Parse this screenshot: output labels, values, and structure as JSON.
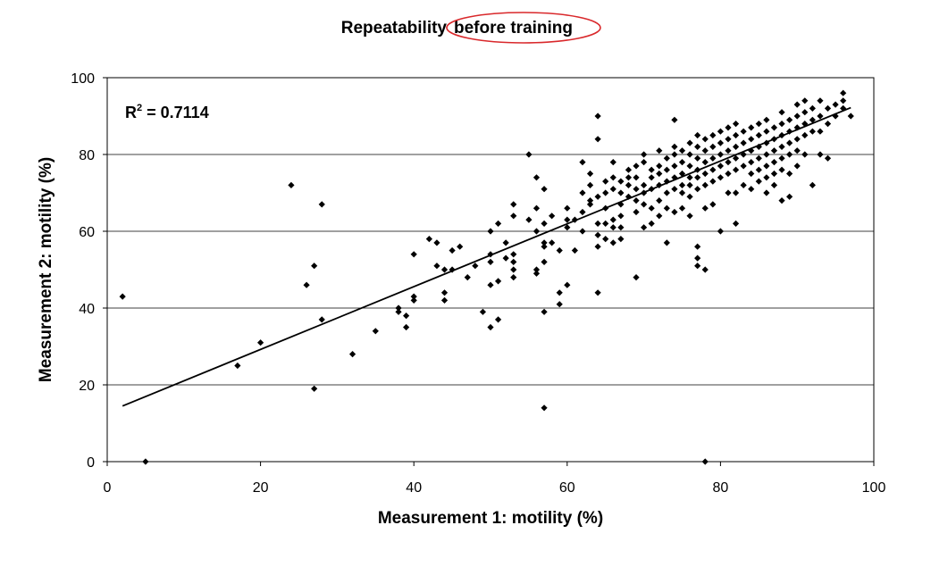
{
  "chart_data": {
    "type": "scatter",
    "title_part1": "Repeatability",
    "title_part2": "before training",
    "xlabel": "Measurement 1: motility (%)",
    "ylabel": "Measurement 2: motility (%)",
    "xlim": [
      0,
      100
    ],
    "ylim": [
      0,
      100
    ],
    "x_ticks": [
      0,
      20,
      40,
      60,
      80,
      100
    ],
    "y_ticks": [
      0,
      20,
      40,
      60,
      80,
      100
    ],
    "grid": "horizontal",
    "annotation": {
      "base": "R",
      "sup": "2",
      "rest": " = 0.7114"
    },
    "trendline": {
      "x": [
        2,
        97
      ],
      "y": [
        14.5,
        92.2
      ]
    },
    "points": [
      [
        2,
        43
      ],
      [
        5,
        0
      ],
      [
        17,
        25
      ],
      [
        20,
        31
      ],
      [
        24,
        72
      ],
      [
        26,
        46
      ],
      [
        27,
        51
      ],
      [
        27,
        19
      ],
      [
        28,
        67
      ],
      [
        28,
        37
      ],
      [
        32,
        28
      ],
      [
        35,
        34
      ],
      [
        38,
        39
      ],
      [
        38,
        40
      ],
      [
        39,
        35
      ],
      [
        39,
        38
      ],
      [
        40,
        42
      ],
      [
        40,
        43
      ],
      [
        40,
        54
      ],
      [
        42,
        58
      ],
      [
        43,
        51
      ],
      [
        43,
        57
      ],
      [
        44,
        42
      ],
      [
        44,
        44
      ],
      [
        44,
        50
      ],
      [
        45,
        50
      ],
      [
        45,
        55
      ],
      [
        46,
        56
      ],
      [
        47,
        48
      ],
      [
        48,
        51
      ],
      [
        49,
        39
      ],
      [
        50,
        35
      ],
      [
        50,
        46
      ],
      [
        50,
        52
      ],
      [
        50,
        54
      ],
      [
        50,
        60
      ],
      [
        51,
        37
      ],
      [
        51,
        47
      ],
      [
        51,
        62
      ],
      [
        52,
        53
      ],
      [
        52,
        57
      ],
      [
        53,
        48
      ],
      [
        53,
        50
      ],
      [
        53,
        52
      ],
      [
        53,
        54
      ],
      [
        53,
        64
      ],
      [
        53,
        67
      ],
      [
        55,
        63
      ],
      [
        55,
        80
      ],
      [
        56,
        49
      ],
      [
        56,
        50
      ],
      [
        56,
        60
      ],
      [
        56,
        66
      ],
      [
        56,
        74
      ],
      [
        57,
        39
      ],
      [
        57,
        14
      ],
      [
        57,
        52
      ],
      [
        57,
        56
      ],
      [
        57,
        57
      ],
      [
        57,
        62
      ],
      [
        57,
        71
      ],
      [
        58,
        57
      ],
      [
        58,
        64
      ],
      [
        59,
        55
      ],
      [
        59,
        44
      ],
      [
        59,
        41
      ],
      [
        60,
        46
      ],
      [
        60,
        61
      ],
      [
        60,
        63
      ],
      [
        60,
        66
      ],
      [
        61,
        55
      ],
      [
        61,
        63
      ],
      [
        62,
        60
      ],
      [
        62,
        65
      ],
      [
        62,
        70
      ],
      [
        62,
        78
      ],
      [
        63,
        67
      ],
      [
        63,
        68
      ],
      [
        63,
        72
      ],
      [
        63,
        75
      ],
      [
        64,
        44
      ],
      [
        64,
        56
      ],
      [
        64,
        59
      ],
      [
        64,
        62
      ],
      [
        64,
        69
      ],
      [
        64,
        84
      ],
      [
        64,
        90
      ],
      [
        65,
        58
      ],
      [
        65,
        62
      ],
      [
        65,
        66
      ],
      [
        65,
        70
      ],
      [
        65,
        73
      ],
      [
        66,
        57
      ],
      [
        66,
        61
      ],
      [
        66,
        63
      ],
      [
        66,
        71
      ],
      [
        66,
        74
      ],
      [
        66,
        78
      ],
      [
        67,
        58
      ],
      [
        67,
        61
      ],
      [
        67,
        64
      ],
      [
        67,
        67
      ],
      [
        67,
        70
      ],
      [
        67,
        73
      ],
      [
        68,
        69
      ],
      [
        68,
        72
      ],
      [
        68,
        74
      ],
      [
        68,
        76
      ],
      [
        69,
        48
      ],
      [
        69,
        65
      ],
      [
        69,
        68
      ],
      [
        69,
        71
      ],
      [
        69,
        74
      ],
      [
        69,
        77
      ],
      [
        70,
        61
      ],
      [
        70,
        67
      ],
      [
        70,
        70
      ],
      [
        70,
        72
      ],
      [
        70,
        78
      ],
      [
        70,
        80
      ],
      [
        71,
        62
      ],
      [
        71,
        66
      ],
      [
        71,
        71
      ],
      [
        71,
        74
      ],
      [
        71,
        76
      ],
      [
        72,
        64
      ],
      [
        72,
        68
      ],
      [
        72,
        72
      ],
      [
        72,
        75
      ],
      [
        72,
        77
      ],
      [
        72,
        81
      ],
      [
        73,
        57
      ],
      [
        73,
        66
      ],
      [
        73,
        70
      ],
      [
        73,
        73
      ],
      [
        73,
        76
      ],
      [
        73,
        79
      ],
      [
        74,
        65
      ],
      [
        74,
        71
      ],
      [
        74,
        74
      ],
      [
        74,
        77
      ],
      [
        74,
        80
      ],
      [
        74,
        82
      ],
      [
        74,
        89
      ],
      [
        75,
        66
      ],
      [
        75,
        70
      ],
      [
        75,
        72
      ],
      [
        75,
        75
      ],
      [
        75,
        78
      ],
      [
        75,
        81
      ],
      [
        76,
        64
      ],
      [
        76,
        69
      ],
      [
        76,
        72
      ],
      [
        76,
        74
      ],
      [
        76,
        77
      ],
      [
        76,
        80
      ],
      [
        76,
        83
      ],
      [
        77,
        56
      ],
      [
        77,
        53
      ],
      [
        77,
        51
      ],
      [
        77,
        71
      ],
      [
        77,
        74
      ],
      [
        77,
        76
      ],
      [
        77,
        79
      ],
      [
        77,
        82
      ],
      [
        77,
        85
      ],
      [
        78,
        50
      ],
      [
        78,
        0
      ],
      [
        78,
        66
      ],
      [
        78,
        72
      ],
      [
        78,
        75
      ],
      [
        78,
        78
      ],
      [
        78,
        81
      ],
      [
        78,
        84
      ],
      [
        79,
        67
      ],
      [
        79,
        73
      ],
      [
        79,
        76
      ],
      [
        79,
        79
      ],
      [
        79,
        82
      ],
      [
        79,
        85
      ],
      [
        80,
        60
      ],
      [
        80,
        74
      ],
      [
        80,
        77
      ],
      [
        80,
        80
      ],
      [
        80,
        83
      ],
      [
        80,
        86
      ],
      [
        81,
        70
      ],
      [
        81,
        75
      ],
      [
        81,
        78
      ],
      [
        81,
        81
      ],
      [
        81,
        84
      ],
      [
        81,
        87
      ],
      [
        82,
        62
      ],
      [
        82,
        70
      ],
      [
        82,
        76
      ],
      [
        82,
        79
      ],
      [
        82,
        82
      ],
      [
        82,
        85
      ],
      [
        82,
        88
      ],
      [
        83,
        72
      ],
      [
        83,
        77
      ],
      [
        83,
        80
      ],
      [
        83,
        83
      ],
      [
        83,
        86
      ],
      [
        84,
        71
      ],
      [
        84,
        75
      ],
      [
        84,
        78
      ],
      [
        84,
        81
      ],
      [
        84,
        84
      ],
      [
        84,
        87
      ],
      [
        85,
        73
      ],
      [
        85,
        76
      ],
      [
        85,
        79
      ],
      [
        85,
        82
      ],
      [
        85,
        85
      ],
      [
        85,
        88
      ],
      [
        86,
        70
      ],
      [
        86,
        74
      ],
      [
        86,
        77
      ],
      [
        86,
        80
      ],
      [
        86,
        83
      ],
      [
        86,
        86
      ],
      [
        86,
        89
      ],
      [
        87,
        72
      ],
      [
        87,
        75
      ],
      [
        87,
        78
      ],
      [
        87,
        81
      ],
      [
        87,
        84
      ],
      [
        87,
        87
      ],
      [
        88,
        68
      ],
      [
        88,
        76
      ],
      [
        88,
        79
      ],
      [
        88,
        82
      ],
      [
        88,
        85
      ],
      [
        88,
        88
      ],
      [
        88,
        91
      ],
      [
        89,
        69
      ],
      [
        89,
        75
      ],
      [
        89,
        80
      ],
      [
        89,
        83
      ],
      [
        89,
        86
      ],
      [
        89,
        89
      ],
      [
        90,
        77
      ],
      [
        90,
        81
      ],
      [
        90,
        84
      ],
      [
        90,
        87
      ],
      [
        90,
        90
      ],
      [
        90,
        93
      ],
      [
        91,
        80
      ],
      [
        91,
        85
      ],
      [
        91,
        88
      ],
      [
        91,
        91
      ],
      [
        91,
        94
      ],
      [
        92,
        72
      ],
      [
        92,
        86
      ],
      [
        92,
        89
      ],
      [
        92,
        92
      ],
      [
        93,
        80
      ],
      [
        93,
        86
      ],
      [
        93,
        90
      ],
      [
        93,
        94
      ],
      [
        94,
        79
      ],
      [
        94,
        88
      ],
      [
        94,
        92
      ],
      [
        95,
        90
      ],
      [
        95,
        93
      ],
      [
        96,
        92
      ],
      [
        96,
        94
      ],
      [
        96,
        96
      ],
      [
        97,
        90
      ]
    ]
  }
}
